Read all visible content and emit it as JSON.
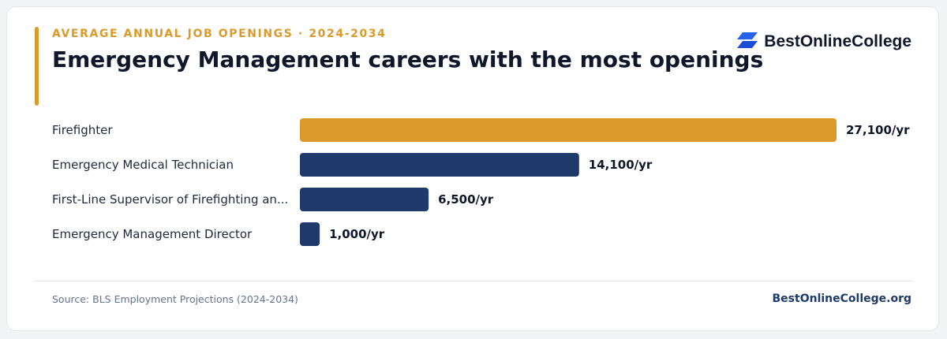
{
  "header": {
    "eyebrow": "AVERAGE ANNUAL JOB OPENINGS · 2024-2034",
    "title": "Emergency Management careers with the most openings"
  },
  "brand": {
    "logo_icon": "stacked-parallelogram-icon",
    "name": "BestOnlineCollege",
    "color": "#2563eb"
  },
  "colors": {
    "accent": "#db9a2a",
    "bar_default": "#1e3a6b",
    "bar_highlight": "#db9a2a"
  },
  "chart_data": {
    "type": "bar",
    "orientation": "horizontal",
    "categories": [
      "Firefighter",
      "Emergency Medical Technician",
      "First-Line Supervisor of Firefighting an...",
      "Emergency Management Director"
    ],
    "values": [
      27100,
      14100,
      6500,
      1000
    ],
    "value_labels": [
      "27,100/yr",
      "14,100/yr",
      "6,500/yr",
      "1,000/yr"
    ],
    "highlight_index": 0,
    "xlim": [
      0,
      27100
    ],
    "grid": false,
    "legend": "none"
  },
  "footer": {
    "source": "Source: BLS Employment Projections (2024-2034)",
    "site": "BestOnlineCollege.org"
  }
}
